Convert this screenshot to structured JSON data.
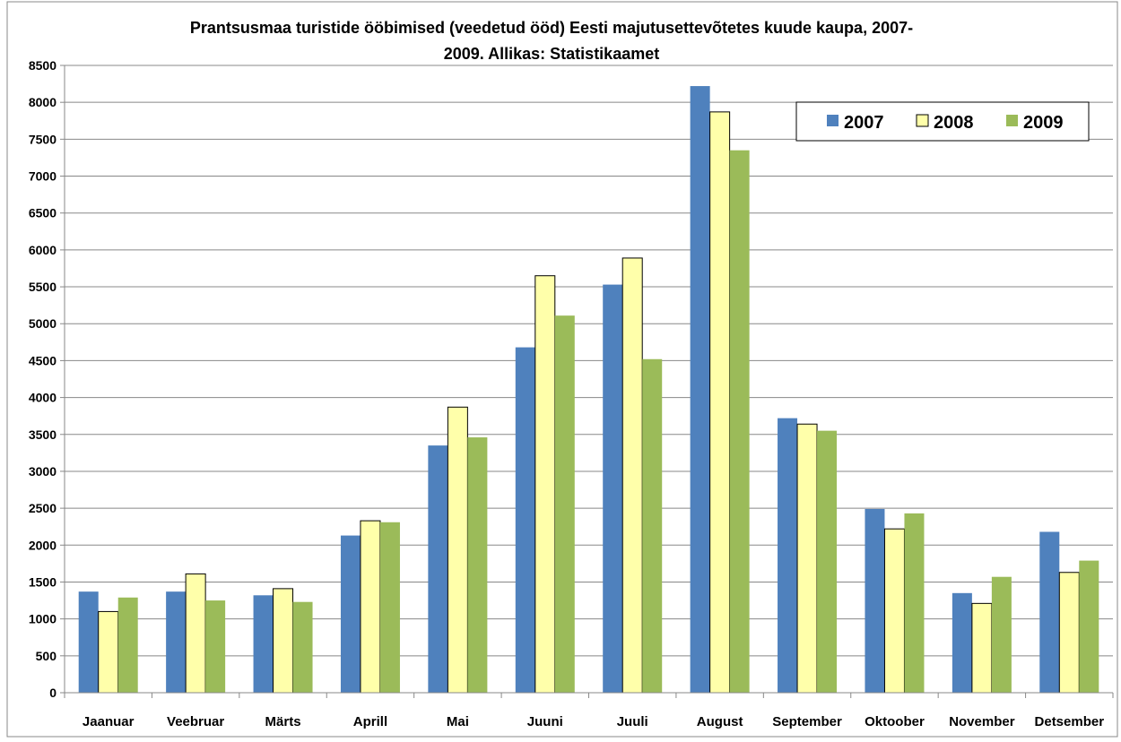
{
  "chart_data": {
    "type": "bar",
    "title_line1": "Prantsusmaa turistide ööbimised (veedetud ööd) Eesti majutusettevõtetes  kuude kaupa, 2007-",
    "title_line2": "2009. Allikas: Statistikaamet",
    "categories": [
      "Jaanuar",
      "Veebruar",
      "Märts",
      "Aprill",
      "Mai",
      "Juuni",
      "Juuli",
      "August",
      "September",
      "Oktoober",
      "November",
      "Detsember"
    ],
    "series": [
      {
        "name": "2007",
        "color": "#4f81bd",
        "values": [
          1370,
          1370,
          1320,
          2130,
          3350,
          4680,
          5530,
          8220,
          3720,
          2490,
          1350,
          2180
        ]
      },
      {
        "name": "2008",
        "color": "#ffffaa",
        "values": [
          1100,
          1610,
          1410,
          2330,
          3870,
          5650,
          5890,
          7870,
          3640,
          2220,
          1210,
          1630
        ]
      },
      {
        "name": "2009",
        "color": "#9bbb59",
        "values": [
          1290,
          1250,
          1230,
          2310,
          3460,
          5110,
          4520,
          7350,
          3550,
          2430,
          1570,
          1790
        ]
      }
    ],
    "ylim": [
      0,
      8500
    ],
    "yticks": [
      0,
      500,
      1000,
      1500,
      2000,
      2500,
      3000,
      3500,
      4000,
      4500,
      5000,
      5500,
      6000,
      6500,
      7000,
      7500,
      8000,
      8500
    ],
    "grid": true,
    "legend_position": "top-right"
  }
}
